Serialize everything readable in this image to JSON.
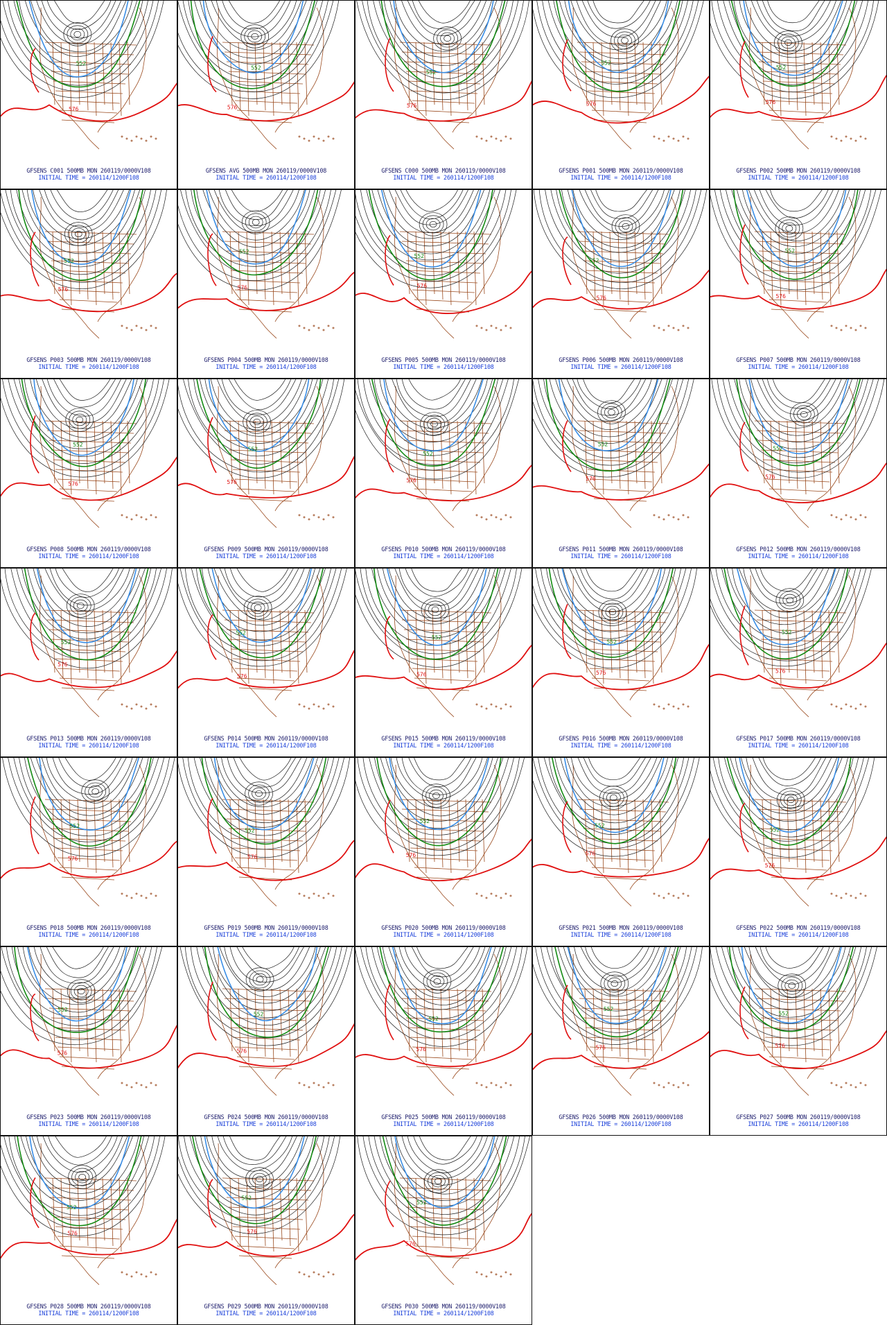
{
  "panels": [
    {
      "id": "C001",
      "line1": "GFSENS C001 500MB MON 260119/0000V108",
      "line2": "INITIAL TIME = 260114/1200F108"
    },
    {
      "id": "AVG",
      "line1": "GFSENS AVG 500MB MON 260119/0000V108",
      "line2": "INITIAL TIME = 260114/1200F108"
    },
    {
      "id": "C000",
      "line1": "GFSENS C000 500MB MON 260119/0000V108",
      "line2": "INITIAL TIME = 260114/1200F108"
    },
    {
      "id": "P001",
      "line1": "GFSENS P001 500MB MON 260119/0000V108",
      "line2": "INITIAL TIME = 260114/1200F108"
    },
    {
      "id": "P002",
      "line1": "GFSENS P002 500MB MON 260119/0000V108",
      "line2": "INITIAL TIME = 260114/1200F108"
    },
    {
      "id": "P003",
      "line1": "GFSENS P003 500MB MON 260119/0000V108",
      "line2": "INITIAL TIME = 260114/1200F108"
    },
    {
      "id": "P004",
      "line1": "GFSENS P004 500MB MON 260119/0000V108",
      "line2": "INITIAL TIME = 260114/1200F108"
    },
    {
      "id": "P005",
      "line1": "GFSENS P005 500MB MON 260119/0000V108",
      "line2": "INITIAL TIME = 260114/1200F108"
    },
    {
      "id": "P006",
      "line1": "GFSENS P006 500MB MON 260119/0000V108",
      "line2": "INITIAL TIME = 260114/1200F108"
    },
    {
      "id": "P007",
      "line1": "GFSENS P007 500MB MON 260119/0000V108",
      "line2": "INITIAL TIME = 260114/1200F108"
    },
    {
      "id": "P008",
      "line1": "GFSENS P008 500MB MON 260119/0000V108",
      "line2": "INITIAL TIME = 260114/1200F108"
    },
    {
      "id": "P009",
      "line1": "GFSENS P009 500MB MON 260119/0000V108",
      "line2": "INITIAL TIME = 260114/1200F108"
    },
    {
      "id": "P010",
      "line1": "GFSENS P010 500MB MON 260119/0000V108",
      "line2": "INITIAL TIME = 260114/1200F108"
    },
    {
      "id": "P011",
      "line1": "GFSENS P011 500MB MON 260119/0000V108",
      "line2": "INITIAL TIME = 260114/1200F108"
    },
    {
      "id": "P012",
      "line1": "GFSENS P012 500MB MON 260119/0000V108",
      "line2": "INITIAL TIME = 260114/1200F108"
    },
    {
      "id": "P013",
      "line1": "GFSENS P013 500MB MON 260119/0000V108",
      "line2": "INITIAL TIME = 260114/1200F108"
    },
    {
      "id": "P014",
      "line1": "GFSENS P014 500MB MON 260119/0000V108",
      "line2": "INITIAL TIME = 260114/1200F108"
    },
    {
      "id": "P015",
      "line1": "GFSENS P015 500MB MON 260119/0000V108",
      "line2": "INITIAL TIME = 260114/1200F108"
    },
    {
      "id": "P016",
      "line1": "GFSENS P016 500MB MON 260119/0000V108",
      "line2": "INITIAL TIME = 260114/1200F108"
    },
    {
      "id": "P017",
      "line1": "GFSENS P017 500MB MON 260119/0000V108",
      "line2": "INITIAL TIME = 260114/1200F108"
    },
    {
      "id": "P018",
      "line1": "GFSENS P018 500MB MON 260119/0000V108",
      "line2": "INITIAL TIME = 260114/1200F108"
    },
    {
      "id": "P019",
      "line1": "GFSENS P019 500MB MON 260119/0000V108",
      "line2": "INITIAL TIME = 260114/1200F108"
    },
    {
      "id": "P020",
      "line1": "GFSENS P020 500MB MON 260119/0000V108",
      "line2": "INITIAL TIME = 260114/1200F108"
    },
    {
      "id": "P021",
      "line1": "GFSENS P021 500MB MON 260119/0000V108",
      "line2": "INITIAL TIME = 260114/1200F108"
    },
    {
      "id": "P022",
      "line1": "GFSENS P022 500MB MON 260119/0000V108",
      "line2": "INITIAL TIME = 260114/1200F108"
    },
    {
      "id": "P023",
      "line1": "GFSENS P023 500MB MON 260119/0000V108",
      "line2": "INITIAL TIME = 260114/1200F108"
    },
    {
      "id": "P024",
      "line1": "GFSENS P024 500MB MON 260119/0000V108",
      "line2": "INITIAL TIME = 260114/1200F108"
    },
    {
      "id": "P025",
      "line1": "GFSENS P025 500MB MON 260119/0000V108",
      "line2": "INITIAL TIME = 260114/1200F108"
    },
    {
      "id": "P026",
      "line1": "GFSENS P026 500MB MON 260119/0000V108",
      "line2": "INITIAL TIME = 260114/1200F108"
    },
    {
      "id": "P027",
      "line1": "GFSENS P027 500MB MON 260119/0000V108",
      "line2": "INITIAL TIME = 260114/1200F108"
    },
    {
      "id": "P028",
      "line1": "GFSENS P028 500MB MON 260119/0000V108",
      "line2": "INITIAL TIME = 260114/1200F108"
    },
    {
      "id": "P029",
      "line1": "GFSENS P029 500MB MON 260119/0000V108",
      "line2": "INITIAL TIME = 260114/1200F108"
    },
    {
      "id": "P030",
      "line1": "GFSENS P030 500MB MON 260119/0000V108",
      "line2": "INITIAL TIME = 260114/1200F108"
    }
  ],
  "contour_labels": {
    "red": "576",
    "green": "552"
  },
  "colors": {
    "red_contour": "#e01010",
    "green_contour": "#138a13",
    "blue_contour": "#3a8ee6",
    "black_contour": "#1a1a1a",
    "map_lines": "#9a4a1e",
    "caption_line1": "#1a1a6a",
    "caption_line2": "#1a3fd9"
  }
}
